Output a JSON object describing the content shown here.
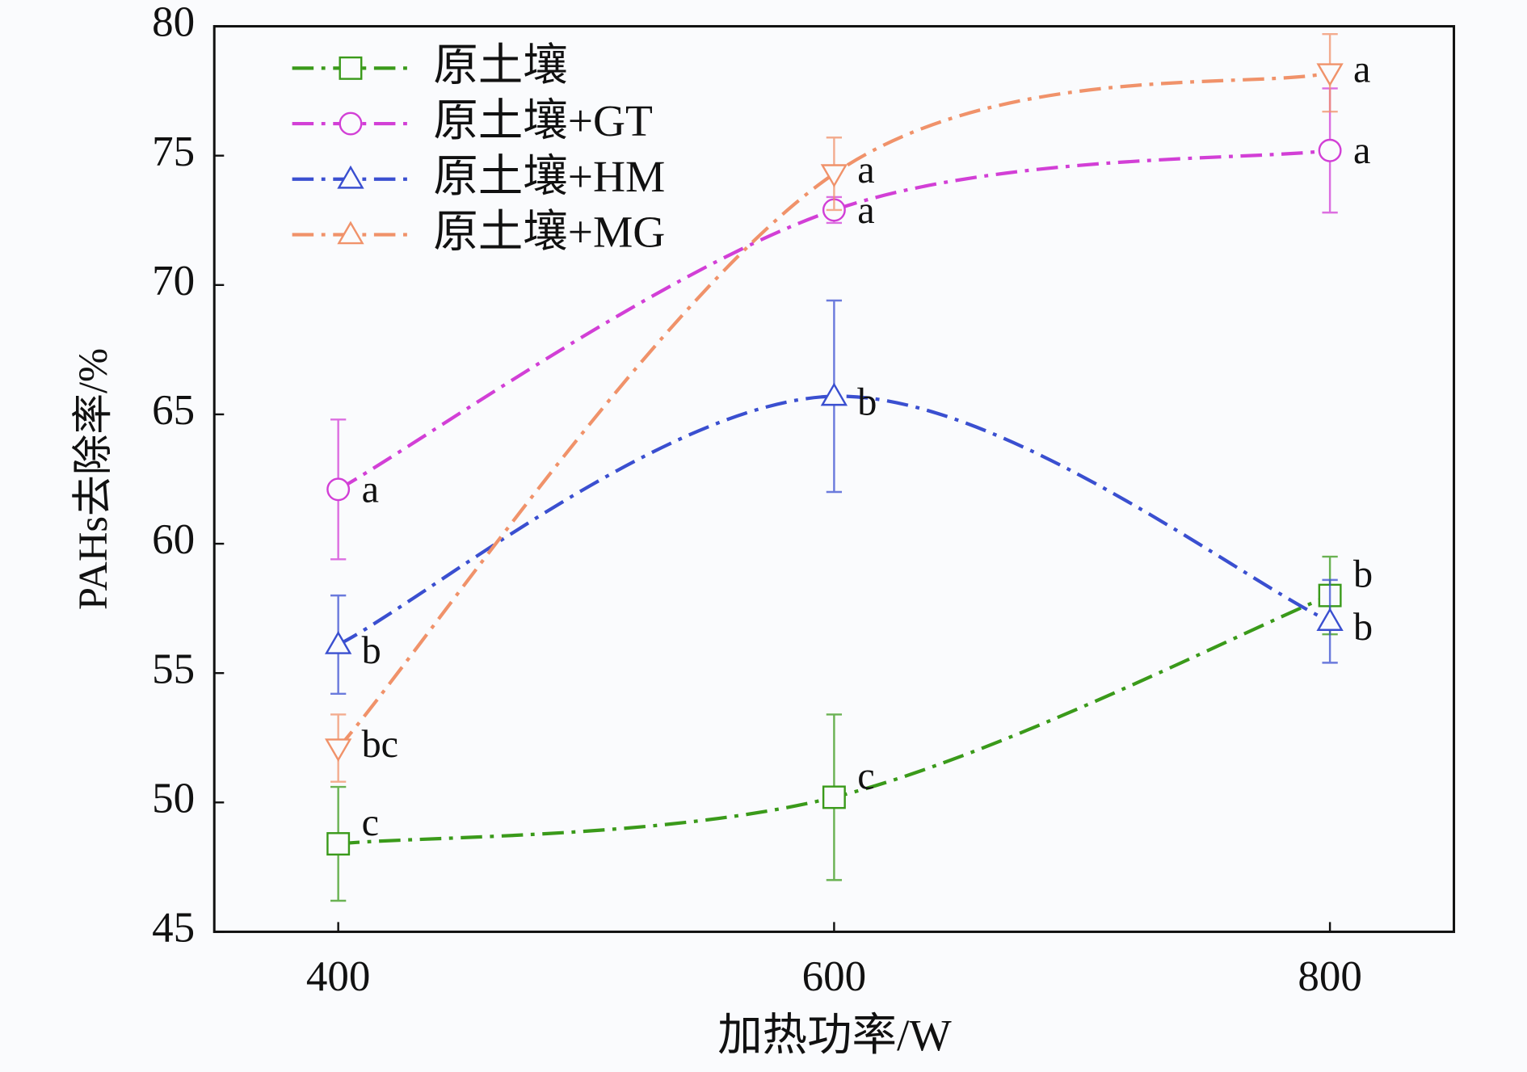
{
  "chart_data": {
    "type": "line",
    "x_label": "加热功率/W",
    "y_label": "PAHs去除率/%",
    "x": [
      400,
      600,
      800
    ],
    "xlim": [
      350,
      850
    ],
    "xticks": [
      400,
      600,
      800
    ],
    "ylim": [
      45,
      80
    ],
    "yticks": [
      45,
      50,
      55,
      60,
      65,
      70,
      75,
      80
    ],
    "legend": "upper left",
    "series": [
      {
        "name": "原土壤",
        "color": "#3a9a1a",
        "marker": "square",
        "values": [
          48.4,
          50.2,
          58.0
        ],
        "errors": [
          2.2,
          3.2,
          1.5
        ],
        "letters": [
          "c",
          "c",
          "b"
        ]
      },
      {
        "name": "原土壤+GT",
        "color": "#d23fd6",
        "marker": "circle",
        "values": [
          62.1,
          72.9,
          75.2
        ],
        "errors": [
          2.7,
          0.5,
          2.4
        ],
        "letters": [
          "a",
          "a",
          "a"
        ]
      },
      {
        "name": "原土壤+HM",
        "color": "#3a4fd0",
        "marker": "triangle-up",
        "values": [
          56.1,
          65.7,
          57.0
        ],
        "errors": [
          1.9,
          3.7,
          1.6
        ],
        "letters": [
          "b",
          "b",
          "b"
        ]
      },
      {
        "name": "原土壤+MG",
        "color": "#f0926a",
        "marker": "triangle-down",
        "values": [
          52.1,
          74.3,
          78.2
        ],
        "errors": [
          1.3,
          1.4,
          1.5
        ],
        "letters": [
          "bc",
          "a",
          "a"
        ]
      }
    ]
  }
}
